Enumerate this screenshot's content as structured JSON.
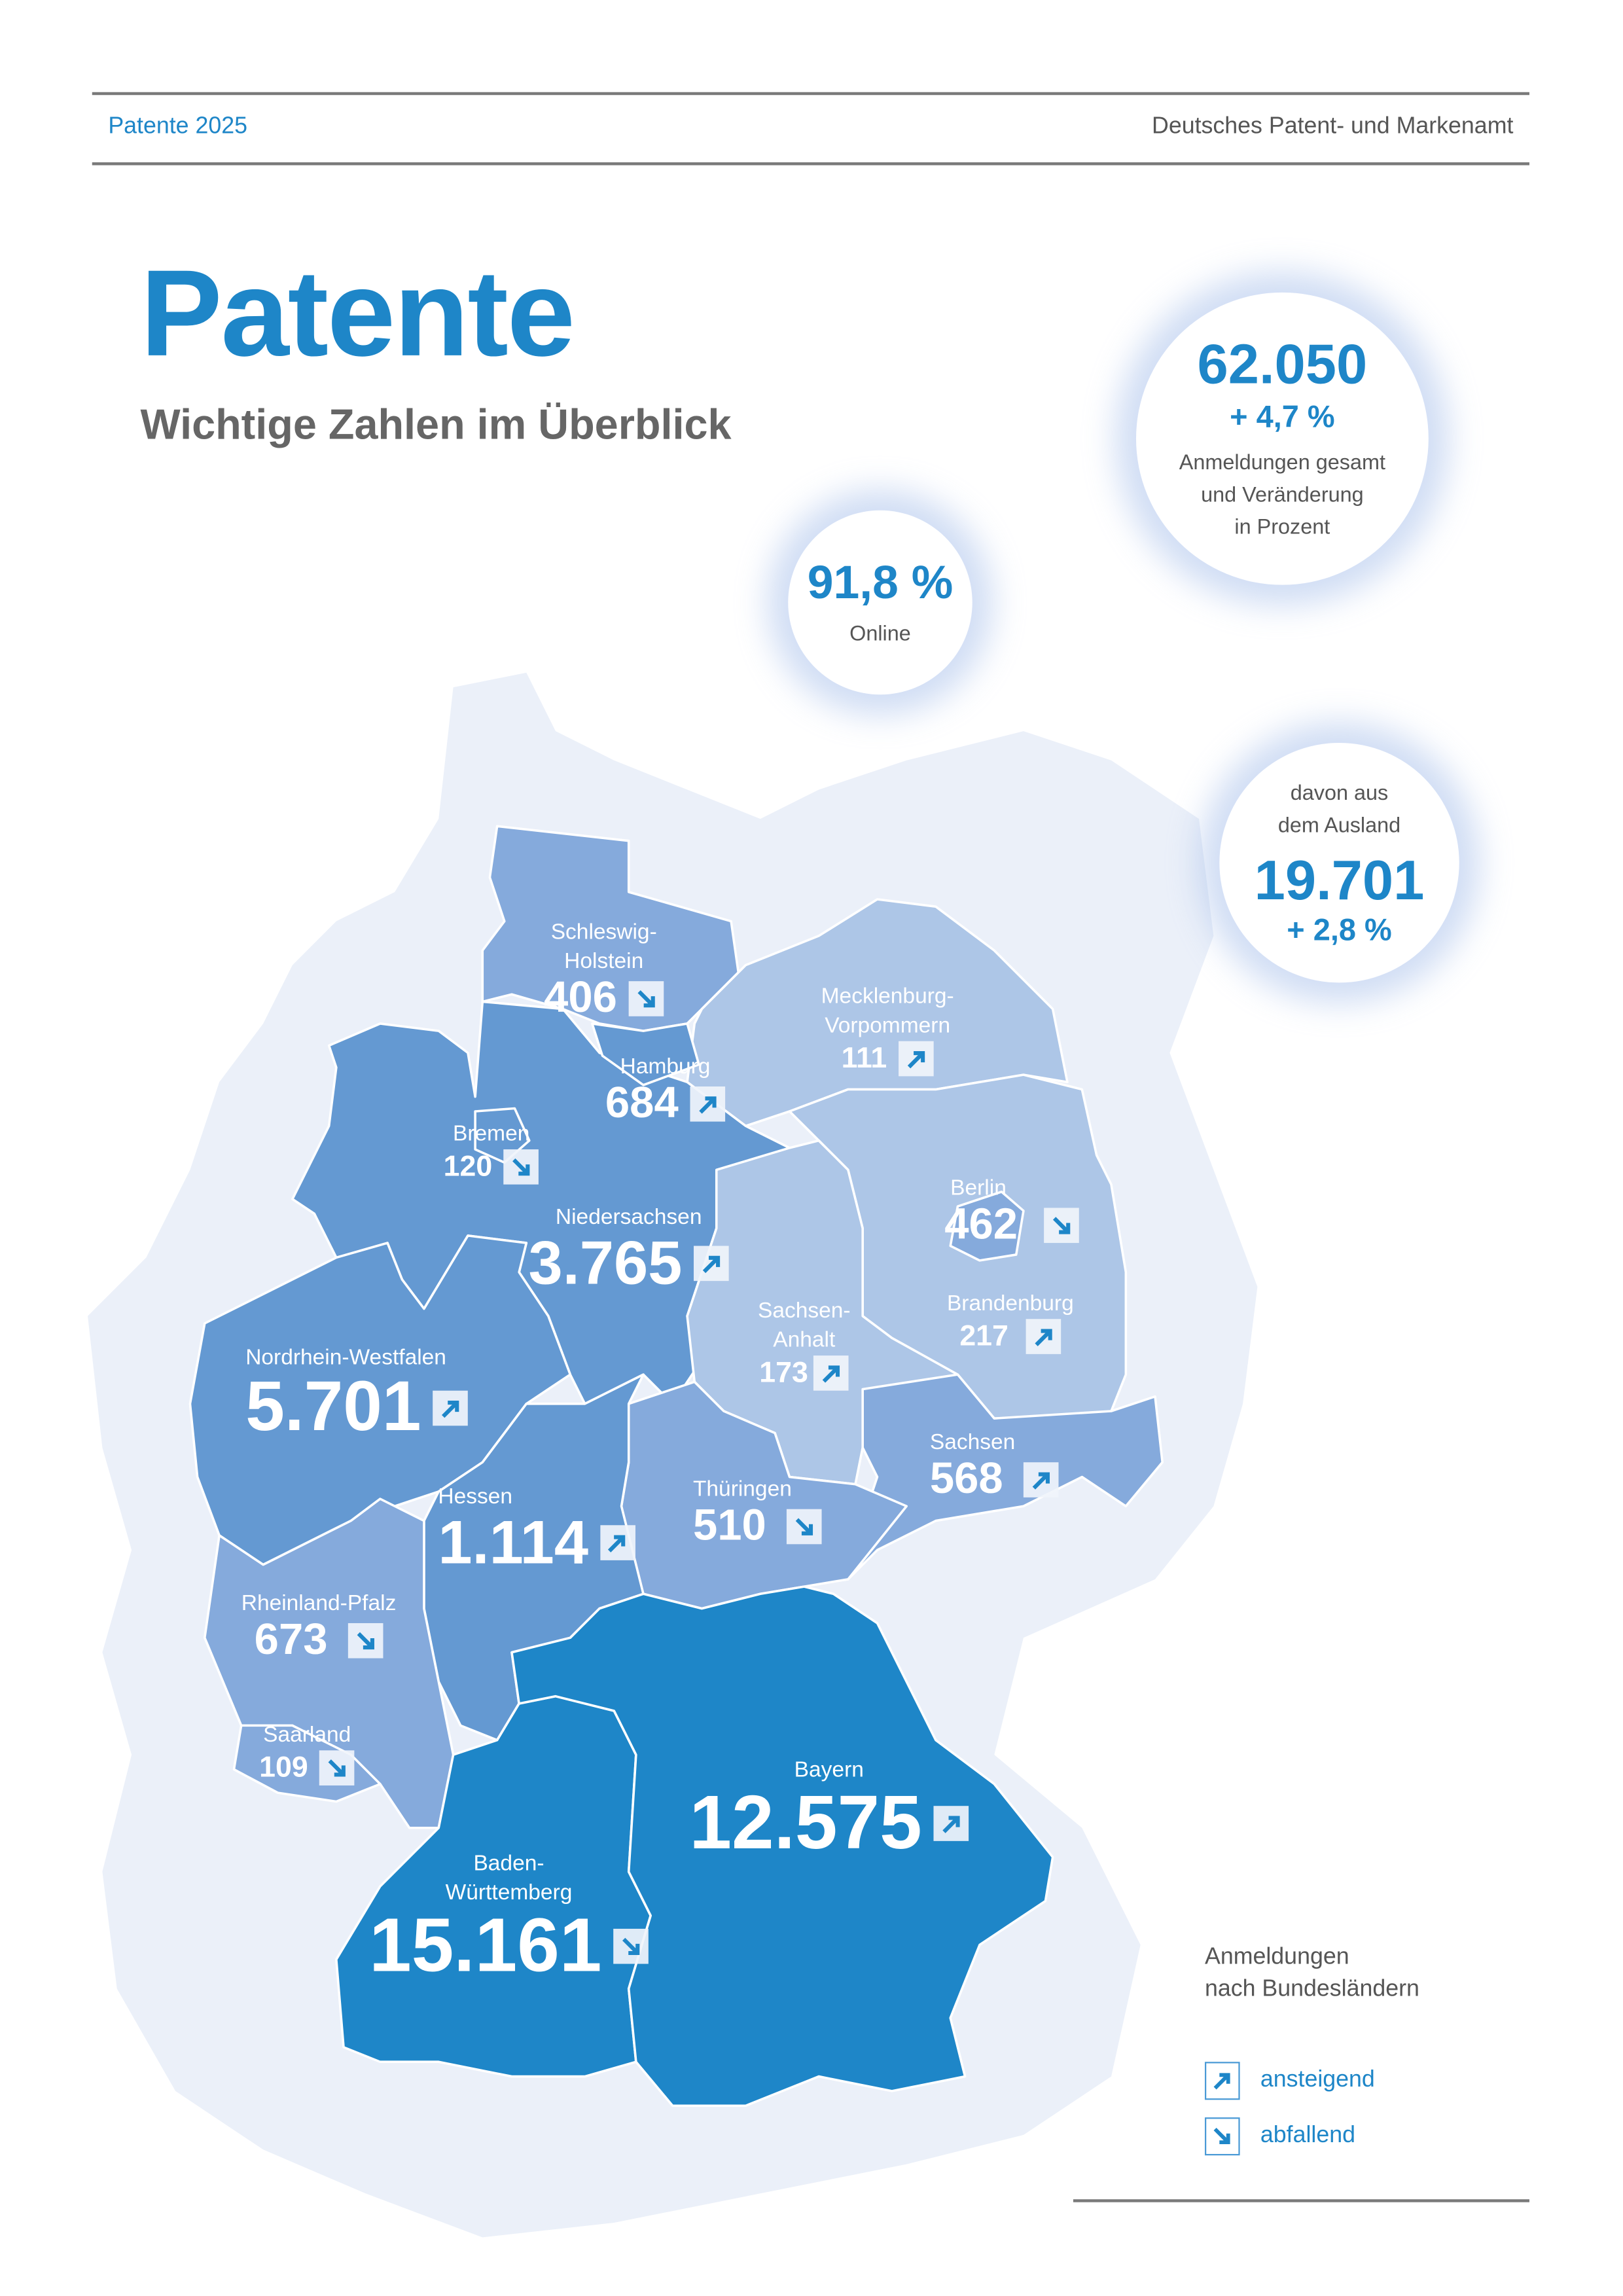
{
  "header": {
    "left": "Patente 2025",
    "right": "Deutsches Patent- und Markenamt"
  },
  "title": "Patente",
  "subtitle": "Wichtige Zahlen im Überblick",
  "stats": {
    "total": {
      "value": "62.050",
      "change": "+ 4,7 %",
      "label_lines": [
        "Anmeldungen gesamt",
        "und Veränderung",
        "in Prozent"
      ]
    },
    "online": {
      "value": "91,8 %",
      "label": "Online"
    },
    "foreign": {
      "label_lines": [
        "davon aus",
        "dem Ausland"
      ],
      "value": "19.701",
      "change": "+ 2,8 %"
    }
  },
  "states": {
    "sh": {
      "name_lines": [
        "Schleswig-",
        "Holstein"
      ],
      "value": "406",
      "trend": "down"
    },
    "hh": {
      "name_lines": [
        "Hamburg"
      ],
      "value": "684",
      "trend": "up"
    },
    "hb": {
      "name_lines": [
        "Bremen"
      ],
      "value": "120",
      "trend": "down"
    },
    "ni": {
      "name_lines": [
        "Niedersachsen"
      ],
      "value": "3.765",
      "trend": "up"
    },
    "mv": {
      "name_lines": [
        "Mecklenburg-",
        "Vorpommern"
      ],
      "value": "111",
      "trend": "up"
    },
    "be": {
      "name_lines": [
        "Berlin"
      ],
      "value": "462",
      "trend": "down"
    },
    "bb": {
      "name_lines": [
        "Brandenburg"
      ],
      "value": "217",
      "trend": "up"
    },
    "st": {
      "name_lines": [
        "Sachsen-",
        "Anhalt"
      ],
      "value": "173",
      "trend": "up"
    },
    "sn": {
      "name_lines": [
        "Sachsen"
      ],
      "value": "568",
      "trend": "up"
    },
    "th": {
      "name_lines": [
        "Thüringen"
      ],
      "value": "510",
      "trend": "down"
    },
    "nw": {
      "name_lines": [
        "Nordrhein-Westfalen"
      ],
      "value": "5.701",
      "trend": "up"
    },
    "he": {
      "name_lines": [
        "Hessen"
      ],
      "value": "1.114",
      "trend": "up"
    },
    "rp": {
      "name_lines": [
        "Rheinland-Pfalz"
      ],
      "value": "673",
      "trend": "down"
    },
    "sl": {
      "name_lines": [
        "Saarland"
      ],
      "value": "109",
      "trend": "down"
    },
    "by": {
      "name_lines": [
        "Bayern"
      ],
      "value": "12.575",
      "trend": "up"
    },
    "bw": {
      "name_lines": [
        "Baden-",
        "Württemberg"
      ],
      "value": "15.161",
      "trend": "down"
    }
  },
  "legend": {
    "title_lines": [
      "Anmeldungen",
      "nach Bundesländern"
    ],
    "up": "ansteigend",
    "down": "abfallend"
  },
  "colors": {
    "accent": "#1e86c8",
    "shade_dark": "#1e86c8",
    "shade_mid": "#6499d2",
    "shade_light": "#85aadc",
    "shade_lightest": "#adc6e7",
    "neighbors": "#eaf0f9"
  }
}
